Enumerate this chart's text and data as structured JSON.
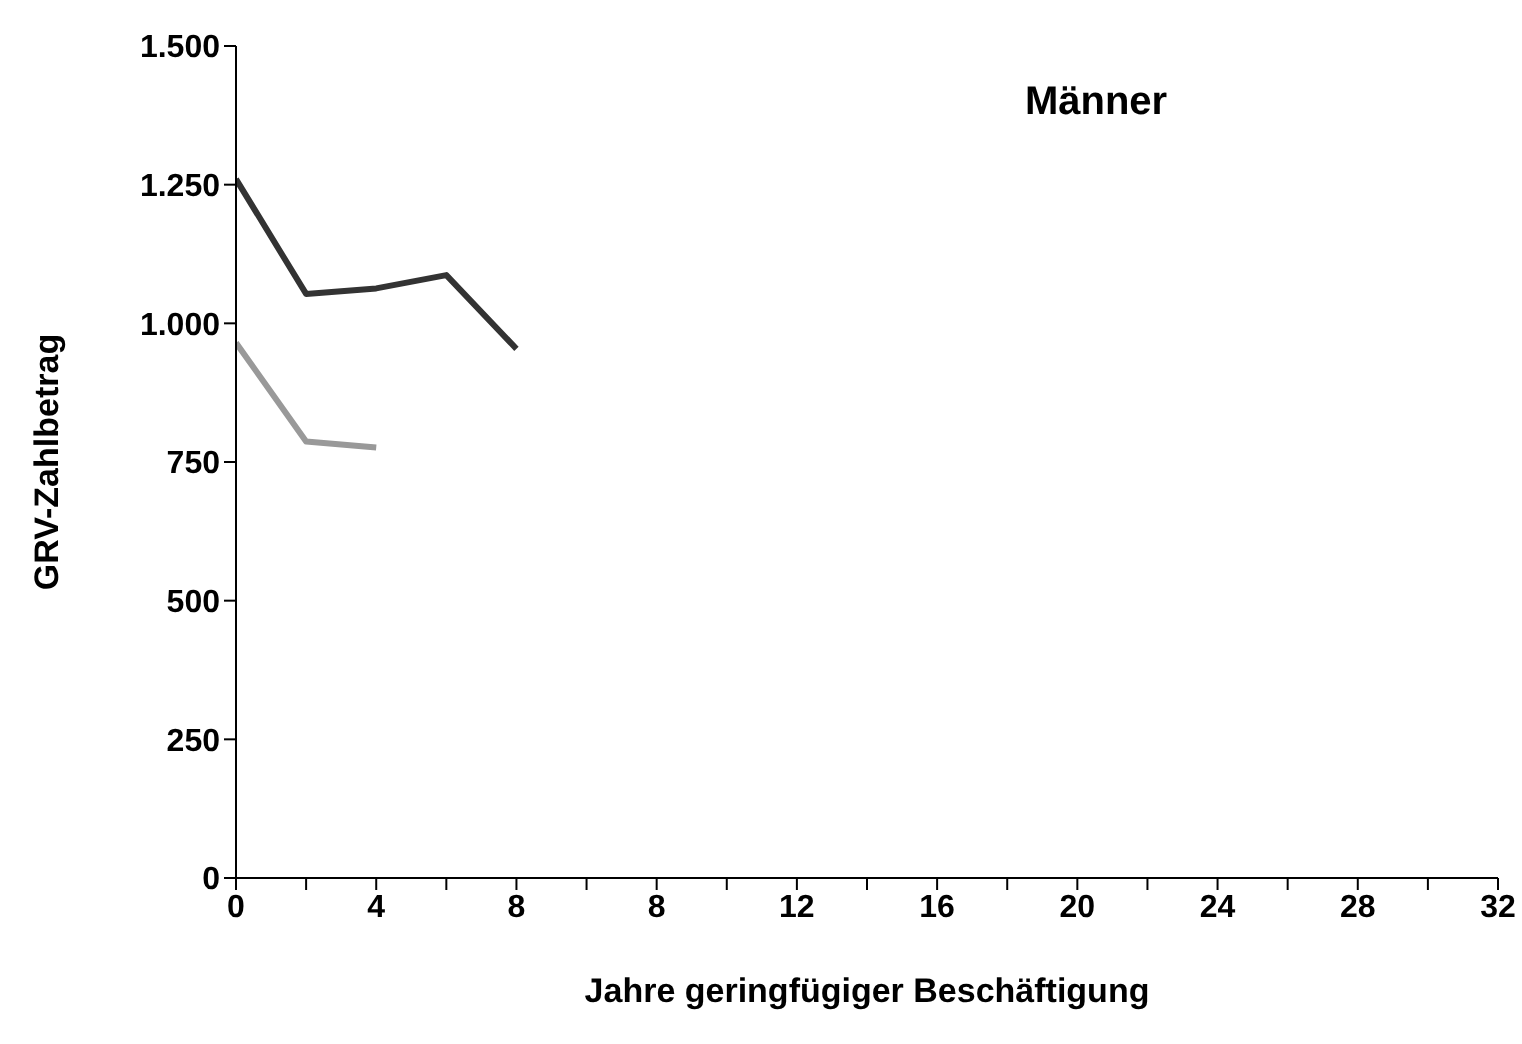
{
  "chart_data": {
    "type": "line",
    "title": "Männer",
    "xlabel": "Jahre geringfügiger Beschäftigung",
    "ylabel": "GRV-Zahlbetrag",
    "categories": [
      "0",
      null,
      "4",
      null,
      "8",
      null,
      "8",
      null,
      "12",
      null,
      "16",
      null,
      "20",
      null,
      "24",
      null,
      "28",
      null,
      "32"
    ],
    "series": [
      {
        "color": "#333333",
        "values": [
          1260,
          1053,
          1063,
          1087,
          954,
          null,
          null,
          null,
          null,
          null,
          null,
          null,
          null,
          null,
          null,
          null,
          null,
          null,
          null
        ]
      },
      {
        "color": "#999999",
        "values": [
          965,
          787,
          776,
          null,
          null,
          null,
          null,
          null,
          null,
          null,
          null,
          null,
          null,
          null,
          null,
          null,
          null,
          null,
          null
        ]
      }
    ],
    "ylim": [
      0,
      1500
    ],
    "yticks": [
      {
        "value": 0,
        "label": "0"
      },
      {
        "value": 250,
        "label": "250"
      },
      {
        "value": 500,
        "label": "500"
      },
      {
        "value": 750,
        "label": "750"
      },
      {
        "value": 1000,
        "label": "1.000"
      },
      {
        "value": 1250,
        "label": "1.250"
      },
      {
        "value": 1500,
        "label": "1.500"
      }
    ],
    "grid": false,
    "legend": false,
    "marker": "none",
    "line_style": "solid"
  }
}
